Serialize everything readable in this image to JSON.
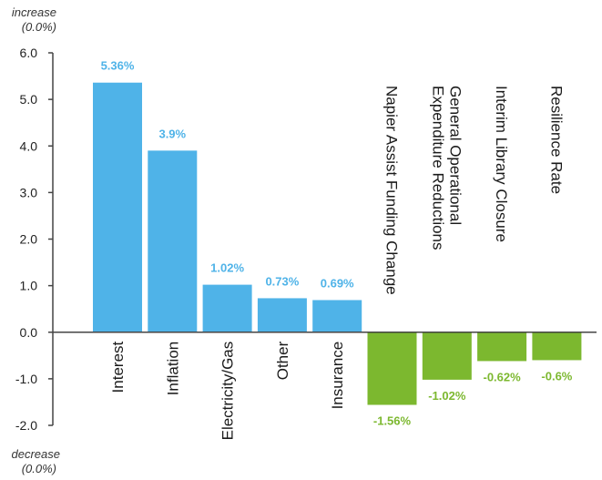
{
  "chart_data": {
    "type": "bar",
    "title": "",
    "xlabel": "",
    "ylabel": "",
    "increase_label": "increase",
    "increase_sublabel": "(0.0%)",
    "decrease_label": "decrease",
    "decrease_sublabel": "(0.0%)",
    "ylim": [
      -2.0,
      6.0
    ],
    "yticks": [
      "6.0",
      "5.0",
      "4.0",
      "3.0",
      "2.0",
      "1.0",
      "0.0",
      "-1.0",
      "-2.0"
    ],
    "ytick_values": [
      6,
      5,
      4,
      3,
      2,
      1,
      0,
      -1,
      -2
    ],
    "categories": [
      "Interest",
      "Inflation",
      "Electricity/Gas",
      "Other",
      "Insurance",
      "Napier Assist Funding Change",
      "General Operational Expenditure Reductions",
      "Interim Library Closure",
      "Resilience Rate"
    ],
    "category_lines": [
      [
        "Interest"
      ],
      [
        "Inflation"
      ],
      [
        "Electricity/Gas"
      ],
      [
        "Other"
      ],
      [
        "Insurance"
      ],
      [
        "Napier Assist Funding Change"
      ],
      [
        "General Operational",
        "Expenditure Reductions"
      ],
      [
        "Interim Library Closure"
      ],
      [
        "Resilience Rate"
      ]
    ],
    "values": [
      5.36,
      3.9,
      1.02,
      0.73,
      0.69,
      -1.56,
      -1.02,
      -0.62,
      -0.6
    ],
    "value_labels": [
      "5.36%",
      "3.9%",
      "1.02%",
      "0.73%",
      "0.69%",
      "-1.56%",
      "-1.02%",
      "-0.62%",
      "-0.6%"
    ],
    "colors": {
      "increase": "#4fb3e8",
      "decrease": "#7cb82f",
      "increase_label": "#4fb3e8",
      "decrease_label": "#7cb82f"
    },
    "grid": false,
    "legend": "none"
  }
}
